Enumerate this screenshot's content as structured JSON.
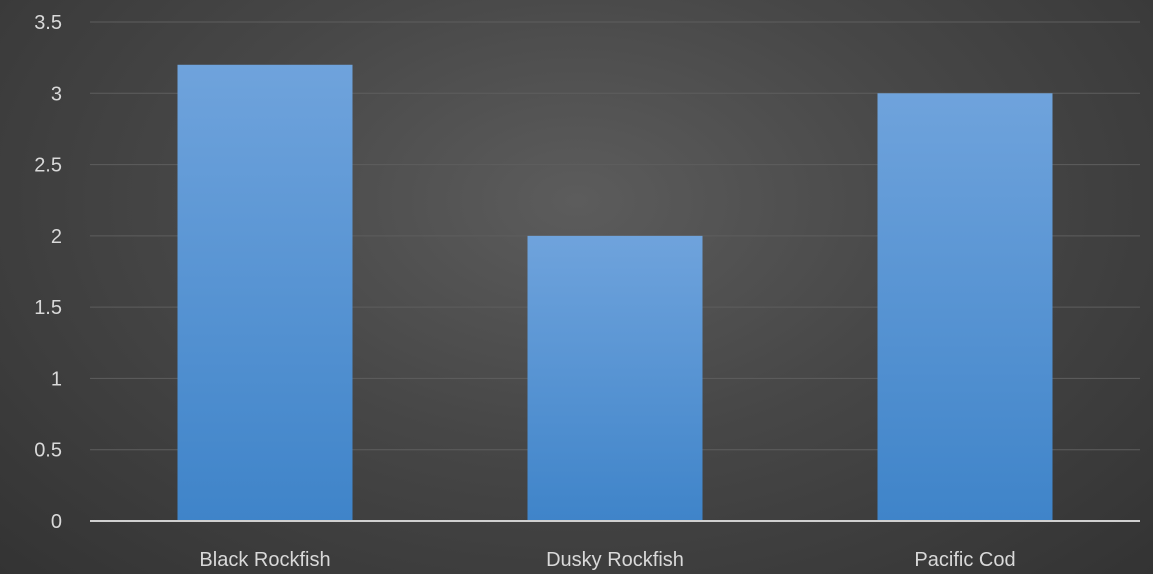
{
  "chart_data": {
    "type": "bar",
    "title": "",
    "xlabel": "",
    "ylabel": "",
    "categories": [
      "Black Rockfish",
      "Dusky Rockfish",
      "Pacific Cod"
    ],
    "values": [
      3.2,
      2.0,
      3.0
    ],
    "ylim": [
      0,
      3.5
    ],
    "yticks": [
      0,
      0.5,
      1,
      1.5,
      2,
      2.5,
      3,
      3.5
    ],
    "ytick_labels": [
      "0",
      "0.5",
      "1",
      "1.5",
      "2",
      "2.5",
      "3",
      "3.5"
    ],
    "grid": true,
    "legend": "none",
    "colors": {
      "bar_top": "#6fa3dc",
      "bar_bottom": "#3f84c9",
      "background": "#474747",
      "gridline": "#5e5e5e",
      "axis": "#d0d0d0",
      "text": "#d9d9d9"
    }
  }
}
